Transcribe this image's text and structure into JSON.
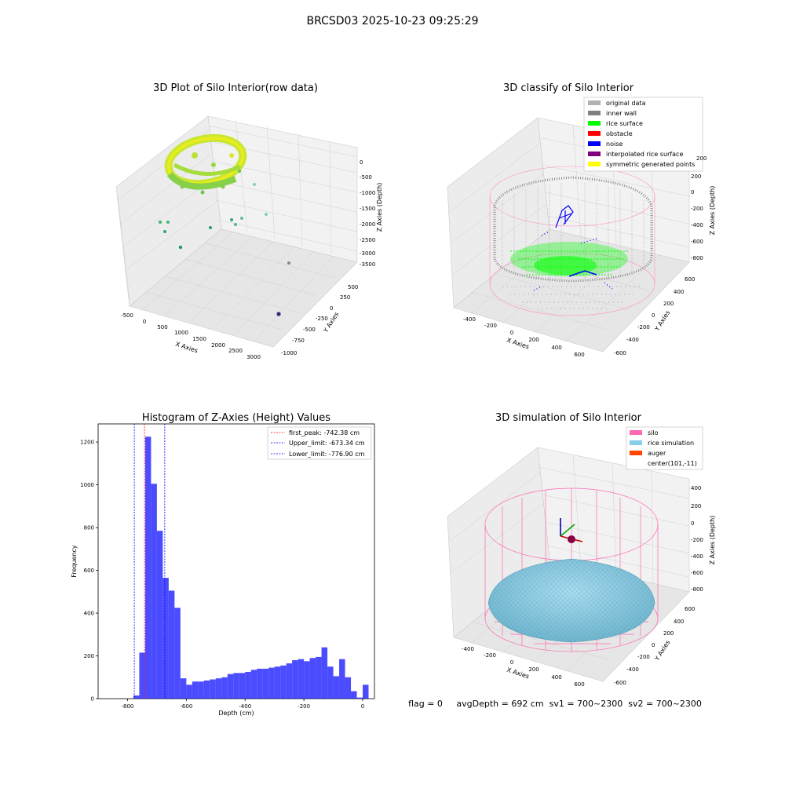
{
  "figure": {
    "suptitle": "BRCSD03 2025-10-23 09:25:29",
    "status_line": "flag = 0     avgDepth = 692 cm  sv1 = 700~2300  sv2 = 700~2300"
  },
  "panels": {
    "raw": {
      "title": "3D Plot of Silo Interior(row data)",
      "xlabel": "X Axies",
      "ylabel": "Y Axies",
      "zlabel": "Z Axies (Depth)",
      "xticks": [
        "-500",
        "0",
        "500",
        "1000",
        "1500",
        "2000",
        "2500",
        "3000"
      ],
      "yticks": [
        "500",
        "250",
        "0",
        "-250",
        "-500",
        "-750",
        "-1000"
      ],
      "zticks": [
        "0",
        "-500",
        "-1000",
        "-1500",
        "-2000",
        "-2500",
        "-3000",
        "-3500"
      ]
    },
    "classify": {
      "title": "3D classify of Silo Interior",
      "xlabel": "X Axies",
      "ylabel": "Y Axies",
      "zlabel": "Z Axies (Depth)",
      "xticks": [
        "-400",
        "-200",
        "0",
        "200",
        "400",
        "600"
      ],
      "yticks": [
        "600",
        "400",
        "200",
        "0",
        "-200",
        "-400",
        "-600"
      ],
      "zticks": [
        "200",
        "0",
        "-200",
        "-400",
        "-600",
        "-800"
      ],
      "legend": [
        {
          "label": "original data",
          "color": "#b3b3b3"
        },
        {
          "label": "inner wall",
          "color": "#808080"
        },
        {
          "label": "rice surface",
          "color": "#00ff00"
        },
        {
          "label": "obstacle",
          "color": "#ff0000"
        },
        {
          "label": "noise",
          "color": "#0000ff"
        },
        {
          "label": "interpolated rice surface",
          "color": "#800080"
        },
        {
          "label": "symmetric generated points",
          "color": "#ffff00"
        }
      ],
      "legend_z_top": "200"
    },
    "simulation": {
      "title": "3D simulation of Silo Interior",
      "xlabel": "X Axies",
      "ylabel": "Y Axies",
      "zlabel": "Z Axies (Depth)",
      "xticks": [
        "-400",
        "-200",
        "0",
        "200",
        "400",
        "600"
      ],
      "yticks": [
        "600",
        "400",
        "200",
        "0",
        "-200",
        "-400",
        "-600"
      ],
      "zticks": [
        "400",
        "200",
        "0",
        "-200",
        "-400",
        "-600",
        "-800"
      ],
      "legend": [
        {
          "label": "silo",
          "color": "#ff69b4"
        },
        {
          "label": "rice simulation",
          "color": "#87ceeb"
        },
        {
          "label": "auger",
          "color": "#ff4500"
        },
        {
          "label": "center(101,-11)",
          "color": ""
        }
      ]
    }
  },
  "chart_data": [
    {
      "type": "scatter",
      "title": "3D Plot of Silo Interior(row data)",
      "xlabel": "X Axies",
      "ylabel": "Y Axies",
      "zlabel": "Z Axies (Depth)",
      "xlim": [
        -700,
        3200
      ],
      "ylim": [
        -1100,
        600
      ],
      "zlim": [
        -3700,
        200
      ],
      "outliers": [
        {
          "x": -450,
          "y": 550,
          "z": -1500
        },
        {
          "x": -300,
          "y": 500,
          "z": -1450
        },
        {
          "x": -380,
          "y": 520,
          "z": -1800
        },
        {
          "x": 150,
          "y": 380,
          "z": -2600
        },
        {
          "x": 600,
          "y": 150,
          "z": -1700
        },
        {
          "x": 900,
          "y": 50,
          "z": -1550
        },
        {
          "x": 1200,
          "y": 0,
          "z": -1300
        },
        {
          "x": 1500,
          "y": -200,
          "z": -700
        },
        {
          "x": 2200,
          "y": -150,
          "z": -1350
        },
        {
          "x": 3000,
          "y": -200,
          "z": -3450
        },
        {
          "x": 2900,
          "y": -650,
          "z": -3300
        }
      ]
    },
    {
      "type": "scatter",
      "title": "3D classify of Silo Interior",
      "series": [
        {
          "name": "original data"
        },
        {
          "name": "inner wall"
        },
        {
          "name": "rice surface"
        },
        {
          "name": "obstacle"
        },
        {
          "name": "noise"
        },
        {
          "name": "interpolated rice surface"
        },
        {
          "name": "symmetric generated points"
        }
      ],
      "xlim": [
        -500,
        700
      ],
      "ylim": [
        -650,
        650
      ],
      "zlim": [
        -900,
        250
      ]
    },
    {
      "type": "bar",
      "title": "Histogram of Z-Axies (Height) Values",
      "xlabel": "Depth (cm)",
      "ylabel": "Frequency",
      "xlim": [
        -900,
        40
      ],
      "ylim": [
        0,
        1285
      ],
      "bin_width": 20,
      "bin_starts": [
        -780,
        -760,
        -740,
        -720,
        -700,
        -680,
        -660,
        -640,
        -620,
        -600,
        -580,
        -560,
        -540,
        -520,
        -500,
        -480,
        -460,
        -440,
        -420,
        -400,
        -380,
        -360,
        -340,
        -320,
        -300,
        -280,
        -260,
        -240,
        -220,
        -200,
        -180,
        -160,
        -140,
        -120,
        -100,
        -80,
        -60,
        -40,
        -20,
        0
      ],
      "values": [
        15,
        215,
        1225,
        1005,
        785,
        565,
        505,
        425,
        95,
        65,
        80,
        80,
        85,
        90,
        95,
        100,
        115,
        120,
        120,
        125,
        135,
        140,
        140,
        145,
        150,
        155,
        165,
        180,
        185,
        175,
        190,
        195,
        240,
        150,
        105,
        185,
        100,
        35,
        5,
        65
      ],
      "xticks": [
        "-800",
        "-600",
        "-400",
        "-200",
        "0"
      ],
      "yticks": [
        "0",
        "200",
        "400",
        "600",
        "800",
        "1000",
        "1200"
      ],
      "lines": [
        {
          "label": "first_peak: -742.38 cm",
          "x": -742.38,
          "color": "#ff0000"
        },
        {
          "label": "Upper_limit: -673.34 cm",
          "x": -673.34,
          "color": "#0000ff"
        },
        {
          "label": "Lower_limit: -776.90 cm",
          "x": -776.9,
          "color": "#0000ff"
        }
      ],
      "bar_color": "#0000ff"
    },
    {
      "type": "surface",
      "title": "3D simulation of Silo Interior",
      "xlim": [
        -500,
        700
      ],
      "ylim": [
        -650,
        650
      ],
      "zlim": [
        -900,
        500
      ],
      "center": [
        101,
        -11
      ]
    }
  ]
}
